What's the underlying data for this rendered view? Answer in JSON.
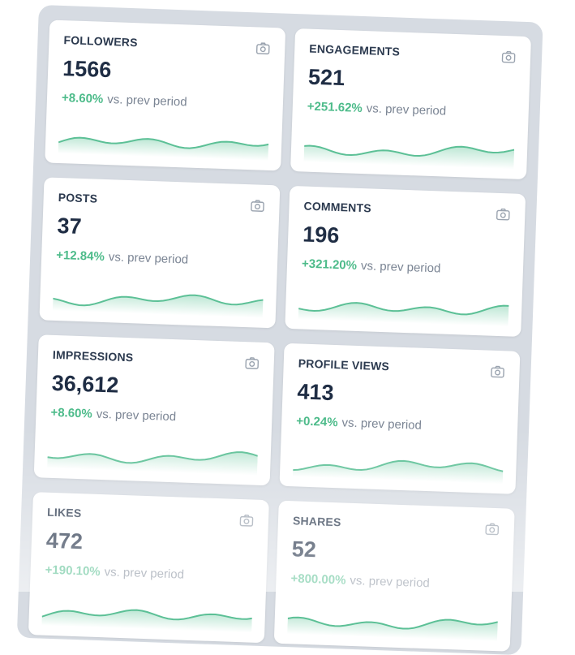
{
  "cards": [
    {
      "label": "FOLLOWERS",
      "value": "1566",
      "change": "+8.60%",
      "note": "vs. prev period"
    },
    {
      "label": "ENGAGEMENTS",
      "value": "521",
      "change": "+251.62%",
      "note": "vs. prev period"
    },
    {
      "label": "POSTS",
      "value": "37",
      "change": "+12.84%",
      "note": "vs. prev period"
    },
    {
      "label": "COMMENTS",
      "value": "196",
      "change": "+321.20%",
      "note": "vs. prev period"
    },
    {
      "label": "IMPRESSIONS",
      "value": "36,612",
      "change": "+8.60%",
      "note": "vs. prev period"
    },
    {
      "label": "PROFILE VIEWS",
      "value": "413",
      "change": "+0.24%",
      "note": "vs. prev period"
    },
    {
      "label": "LIKES",
      "value": "472",
      "change": "+190.10%",
      "note": "vs. prev period"
    },
    {
      "label": "SHARES",
      "value": "52",
      "change": "+800.00%",
      "note": "vs. prev period"
    }
  ]
}
